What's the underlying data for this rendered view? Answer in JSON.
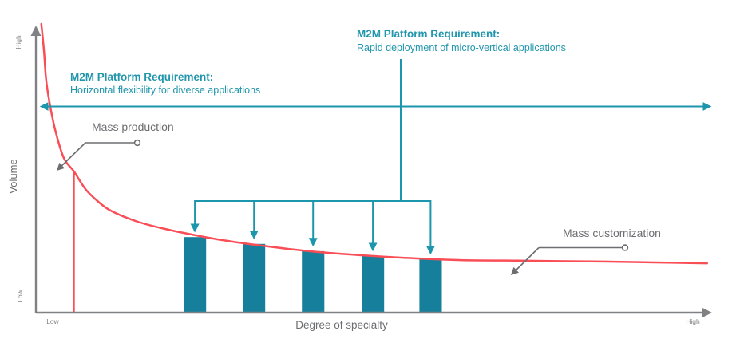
{
  "figure": {
    "axes": {
      "y_axis_label": "Volume",
      "y_high": "High",
      "y_low": "Low",
      "x_axis_label": "Degree of specialty",
      "x_low": "Low",
      "x_high": "High"
    },
    "callouts": {
      "horizontal_requirement": {
        "title": "M2M Platform Requirement:",
        "subtitle": "Horizontal flexibility for diverse applications"
      },
      "vertical_requirement": {
        "title": "M2M Platform Requirement:",
        "subtitle": "Rapid deployment of micro-vertical applications"
      },
      "mass_production": "Mass production",
      "mass_customization": "Mass customization"
    },
    "colors": {
      "teal_text": "#2196ac",
      "teal_line": "#1b96ac",
      "bar_fill": "#16809c",
      "curve_red": "#fa4e57",
      "axis_gray": "#808184",
      "label_gray": "#6d6e71"
    }
  },
  "chart_data": {
    "type": "line",
    "title": "",
    "xlabel": "Degree of specialty",
    "ylabel": "Volume",
    "x_range_labels": [
      "Low",
      "High"
    ],
    "y_range_labels": [
      "Low",
      "High"
    ],
    "grid": false,
    "legend": false,
    "curve": {
      "name": "long-tail-volume-curve",
      "points_frac": [
        [
          0.008,
          1.0
        ],
        [
          0.012,
          0.903
        ],
        [
          0.015,
          0.807
        ],
        [
          0.021,
          0.715
        ],
        [
          0.029,
          0.627
        ],
        [
          0.041,
          0.536
        ],
        [
          0.056,
          0.489
        ],
        [
          0.073,
          0.428
        ],
        [
          0.092,
          0.384
        ],
        [
          0.112,
          0.351
        ],
        [
          0.15,
          0.315
        ],
        [
          0.19,
          0.29
        ],
        [
          0.229,
          0.271
        ],
        [
          0.268,
          0.254
        ],
        [
          0.323,
          0.235
        ],
        [
          0.402,
          0.213
        ],
        [
          0.479,
          0.199
        ],
        [
          0.558,
          0.188
        ],
        [
          0.626,
          0.182
        ],
        [
          0.711,
          0.18
        ],
        [
          0.832,
          0.177
        ],
        [
          0.911,
          0.174
        ],
        [
          0.988,
          0.171
        ]
      ]
    },
    "head_boundary": {
      "x_frac": 0.056,
      "top_v": 0.489
    },
    "bars": {
      "name": "micro-vertical-application-segments",
      "x_frac": [
        0.234,
        0.321,
        0.408,
        0.496,
        0.581
      ],
      "height_frac": [
        0.262,
        0.238,
        0.213,
        0.196,
        0.185
      ],
      "width_frac": 0.033
    }
  }
}
